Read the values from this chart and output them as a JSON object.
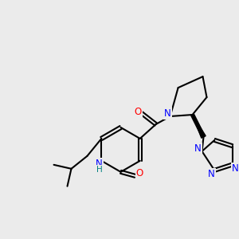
{
  "background_color": "#ebebeb",
  "bond_color": "#000000",
  "bond_width": 1.5,
  "atom_colors": {
    "N": "#0000ff",
    "O": "#ff0000",
    "H": "#008080",
    "C": "#000000"
  },
  "font_size": 8.5
}
